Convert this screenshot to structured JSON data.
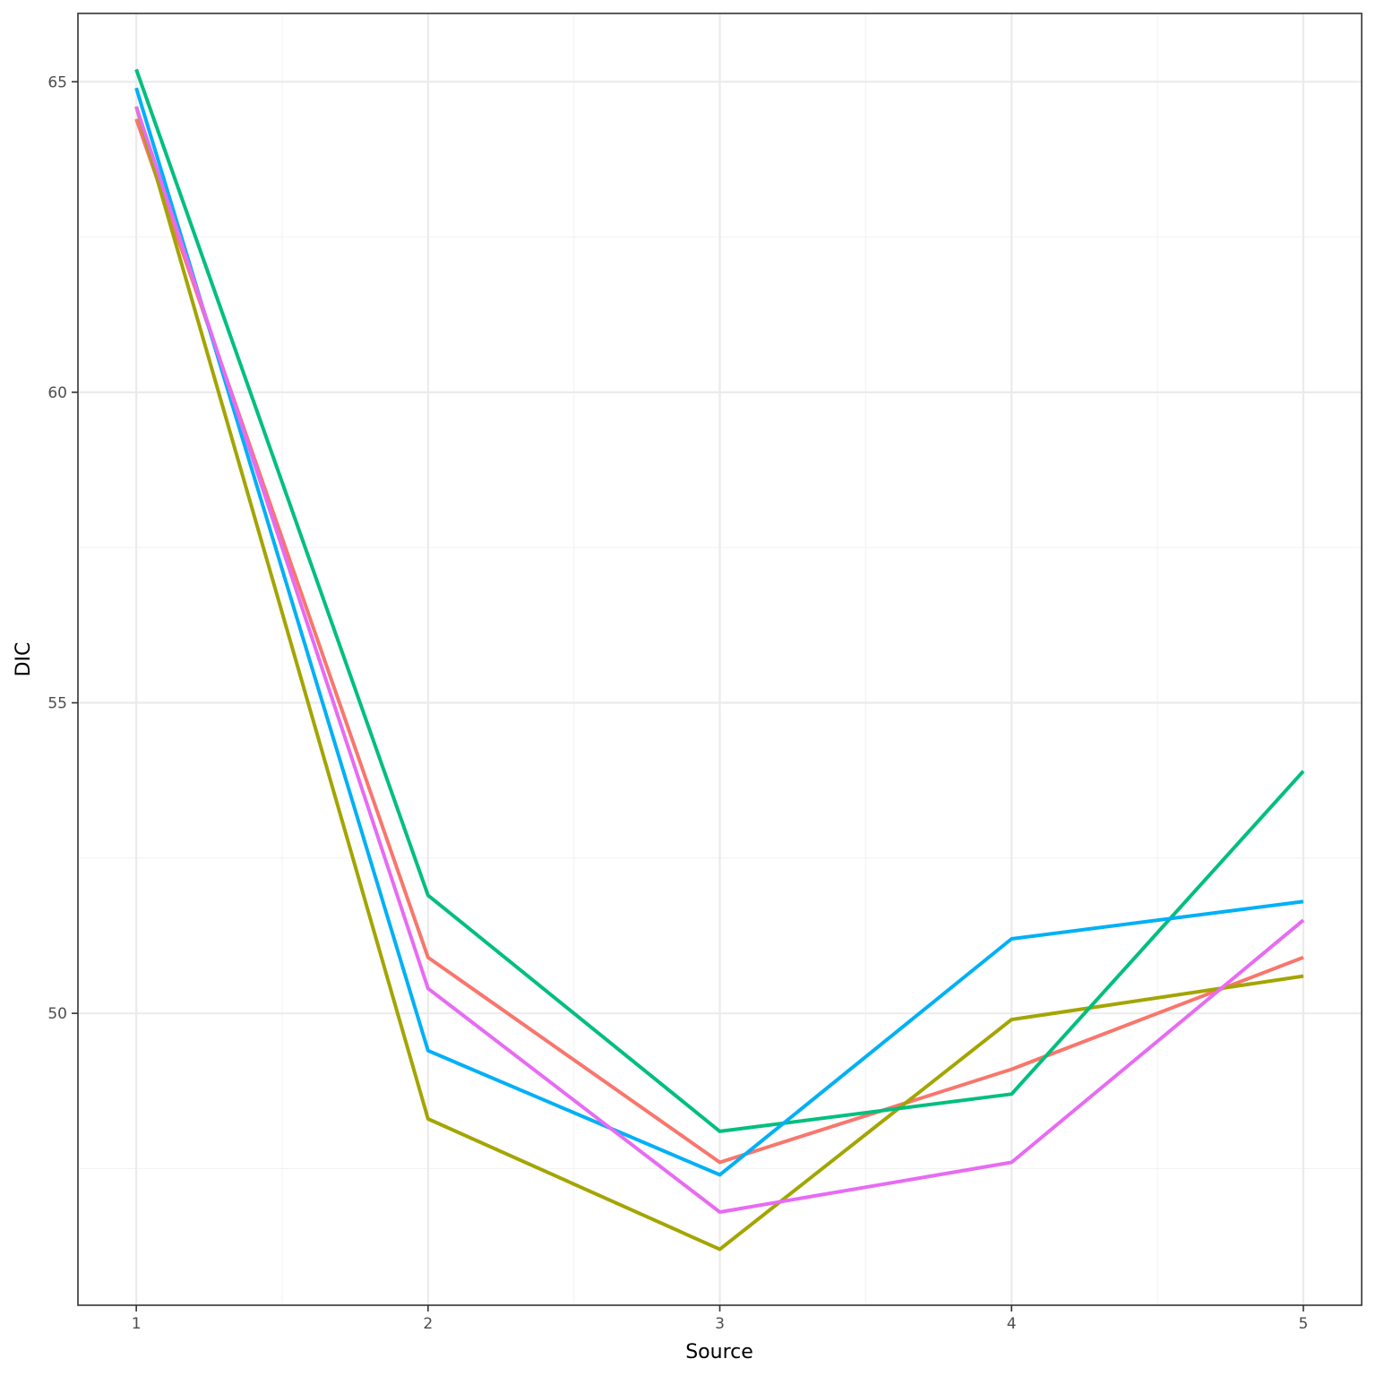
{
  "chart_data": {
    "type": "line",
    "xlabel": "Source",
    "ylabel": "DIC",
    "x": [
      1,
      2,
      3,
      4,
      5
    ],
    "xlim": [
      0.8,
      5.2
    ],
    "ylim": [
      45.3,
      66.1
    ],
    "x_ticks": [
      "1",
      "2",
      "3",
      "4",
      "5"
    ],
    "y_ticks": [
      "50",
      "55",
      "60",
      "65"
    ],
    "y_tick_values": [
      50,
      55,
      60,
      65
    ],
    "grid": true,
    "legend": "none",
    "series": [
      {
        "color": "#F8766D",
        "values": [
          64.4,
          50.9,
          47.6,
          49.1,
          50.9
        ]
      },
      {
        "color": "#A3A500",
        "values": [
          64.6,
          48.3,
          46.2,
          49.9,
          50.6
        ]
      },
      {
        "color": "#00BF7D",
        "values": [
          65.2,
          51.9,
          48.1,
          48.7,
          53.9
        ]
      },
      {
        "color": "#00B0F6",
        "values": [
          64.9,
          49.4,
          47.4,
          51.2,
          51.8
        ]
      },
      {
        "color": "#E76BF3",
        "values": [
          64.6,
          50.4,
          46.8,
          47.6,
          51.5
        ]
      }
    ]
  }
}
